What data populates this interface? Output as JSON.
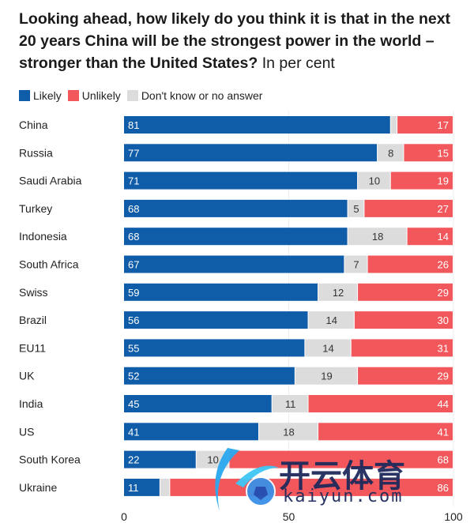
{
  "chart_data": {
    "type": "bar",
    "stacked": true,
    "orientation": "horizontal",
    "title": "Looking ahead, how likely do you think it is that in the next 20 years China will be the strongest power in the world – stronger than the United States?",
    "subtitle": "In per cent",
    "categories": [
      "China",
      "Russia",
      "Saudi Arabia",
      "Turkey",
      "Indonesia",
      "South Africa",
      "Swiss",
      "Brazil",
      "EU11",
      "UK",
      "India",
      "US",
      "South Korea",
      "Ukraine"
    ],
    "series": [
      {
        "name": "Likely",
        "color": "#0f5ca8",
        "values": [
          81,
          77,
          71,
          68,
          68,
          67,
          59,
          56,
          55,
          52,
          45,
          41,
          22,
          11
        ]
      },
      {
        "name": "Don't know or no answer",
        "color": "#dcdcdc",
        "values": [
          2,
          8,
          10,
          5,
          18,
          7,
          12,
          14,
          14,
          19,
          11,
          18,
          10,
          3
        ]
      },
      {
        "name": "Unlikely",
        "color": "#f2575b",
        "values": [
          17,
          15,
          19,
          27,
          14,
          26,
          29,
          30,
          31,
          29,
          44,
          41,
          68,
          86
        ]
      }
    ],
    "legend_order": [
      "Likely",
      "Unlikely",
      "Don't know or no answer"
    ],
    "legend_colors": [
      "#0f5ca8",
      "#f2575b",
      "#dcdcdc"
    ],
    "hidden_labels": [
      [
        false,
        true,
        false
      ]
    ],
    "xlim": [
      0,
      100
    ],
    "xticks": [
      "0",
      "50",
      "100"
    ],
    "legend_position": "top-left"
  },
  "watermark": {
    "cn": "开云体育",
    "en": "kaiyun.com"
  }
}
